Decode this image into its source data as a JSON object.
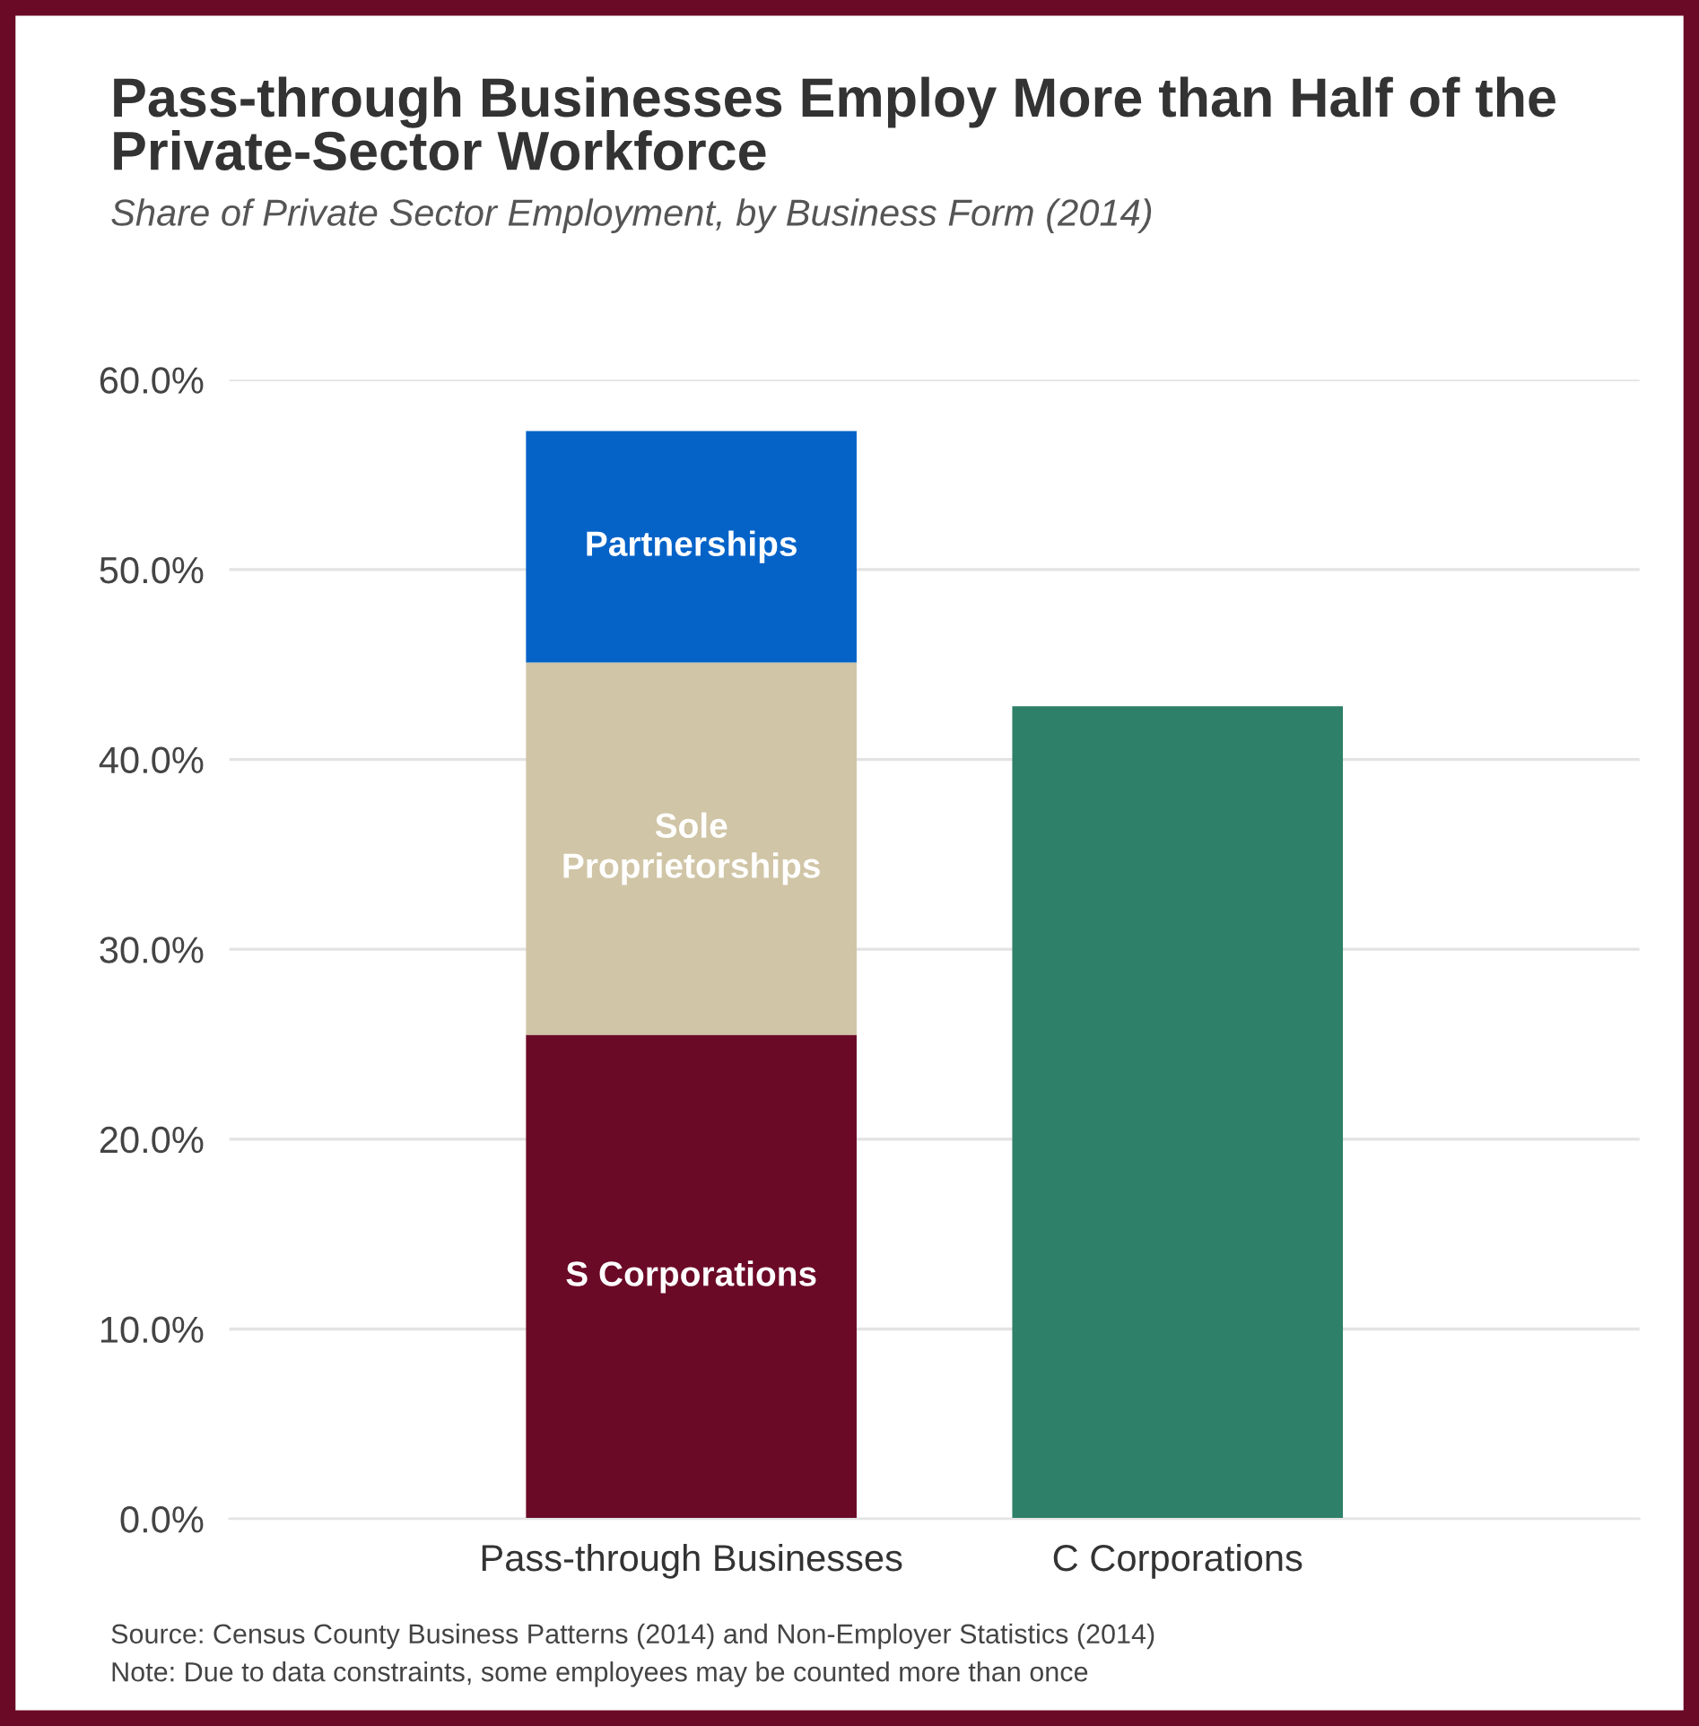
{
  "chart_data": {
    "type": "bar",
    "title": "Pass-through Businesses Employ More than Half of the\nPrivate-Sector Workforce",
    "subtitle": "Share of Private Sector Employment, by Business Form (2014)",
    "categories": [
      "Pass-through Businesses",
      "C Corporations"
    ],
    "stacked": true,
    "series": [
      {
        "name": "S Corporations",
        "color": "#6b0a27",
        "values": [
          25.5,
          null
        ]
      },
      {
        "name": "Sole\nProprietorships",
        "color": "#d0c5a6",
        "values": [
          19.6,
          null
        ]
      },
      {
        "name": "Partnerships",
        "color": "#0563c8",
        "values": [
          12.2,
          null
        ]
      },
      {
        "color": "#2e8068",
        "values": [
          null,
          42.8
        ]
      }
    ],
    "ylim": [
      0,
      60
    ],
    "yticks": [
      {
        "value": 0,
        "label": "0.0%"
      },
      {
        "value": 10,
        "label": "10.0%"
      },
      {
        "value": 20,
        "label": "20.0%"
      },
      {
        "value": 30,
        "label": "30.0%"
      },
      {
        "value": 40,
        "label": "40.0%"
      },
      {
        "value": 50,
        "label": "50.0%"
      },
      {
        "value": 60,
        "label": "60.0%"
      }
    ],
    "grid": "y",
    "annotations": [
      "Source: Census County Business Patterns (2014) and Non-Employer Statistics (2014)",
      "Note: Due to data constraints, some employees may be counted more than once"
    ]
  }
}
